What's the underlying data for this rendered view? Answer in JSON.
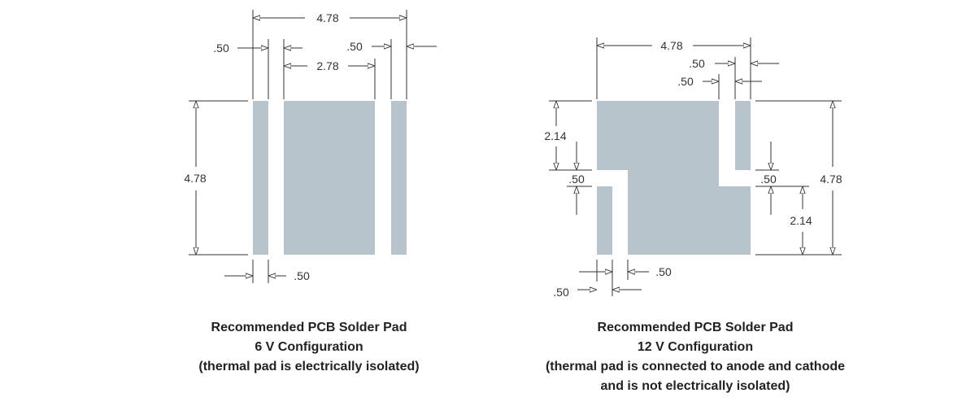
{
  "colors": {
    "pad_fill": "#b7c4cc",
    "line": "#333333",
    "background": "#ffffff"
  },
  "left_diagram": {
    "dimensions": {
      "overall_width": "4.78",
      "left_pad_width": ".50",
      "right_pad_width": ".50",
      "center_pad_width": "2.78",
      "height": "4.78",
      "gap": ".50"
    },
    "caption": {
      "line1": "Recommended PCB Solder Pad",
      "line2": "6 V Configuration",
      "line3": "(thermal pad is electrically isolated)"
    }
  },
  "right_diagram": {
    "dimensions": {
      "overall_width": "4.78",
      "top_gap": ".50",
      "top_pad_width": ".50",
      "upper_height": "2.14",
      "left_notch": ".50",
      "right_notch": ".50",
      "overall_height": "4.78",
      "lower_height": "2.14",
      "bottom_gap": ".50",
      "bottom_pad_width": ".50"
    },
    "caption": {
      "line1": "Recommended PCB Solder Pad",
      "line2": "12 V Configuration",
      "line3": "(thermal pad is connected to anode and cathode",
      "line4": "and is not electrically isolated)"
    }
  }
}
